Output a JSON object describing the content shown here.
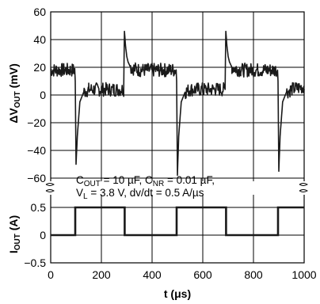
{
  "chart_data": [
    {
      "type": "line",
      "panel": "top",
      "ylabel": "ΔVOUT (mV)",
      "ylabel_parts": [
        "ΔV",
        "OUT",
        " (mV)"
      ],
      "xlim": [
        0,
        1000
      ],
      "ylim": [
        -60,
        60
      ],
      "yticks": [
        60,
        40,
        20,
        0,
        -20,
        -40,
        -60
      ],
      "grid": true,
      "series": [
        {
          "x": [
            0,
            95,
            97,
            100,
            105,
            115,
            130,
            150,
            200,
            250,
            288,
            291,
            295,
            300,
            305,
            315,
            330,
            350,
            400,
            450,
            495,
            497,
            500,
            505,
            515,
            530,
            550,
            600,
            650,
            688,
            691,
            695,
            700,
            705,
            715,
            730,
            750,
            800,
            850,
            895,
            897,
            900,
            905,
            915,
            930,
            950,
            1000
          ],
          "y": [
            18,
            18,
            10,
            -50,
            -30,
            -5,
            2,
            4,
            4,
            4,
            4,
            46,
            36,
            28,
            24,
            20,
            19,
            18,
            18,
            18,
            18,
            10,
            -58,
            -30,
            -5,
            2,
            4,
            4,
            4,
            4,
            46,
            36,
            28,
            24,
            20,
            19,
            18,
            18,
            18,
            18,
            10,
            -55,
            -30,
            -5,
            2,
            4,
            6
          ]
        }
      ]
    },
    {
      "type": "line",
      "panel": "bottom",
      "ylabel": "IOUT (A)",
      "ylabel_parts": [
        "I",
        "OUT",
        " (A)"
      ],
      "xlabel": "t (μs)",
      "xlim": [
        0,
        1000
      ],
      "ylim": [
        -0.5,
        0.5
      ],
      "yticks": [
        0.5,
        0,
        -0.5
      ],
      "xticks": [
        0,
        200,
        400,
        600,
        800,
        1000
      ],
      "grid": true,
      "series": [
        {
          "x": [
            0,
            97,
            97,
            292,
            292,
            497,
            497,
            692,
            692,
            897,
            897,
            1000
          ],
          "y": [
            0,
            0,
            0.5,
            0.5,
            0,
            0,
            0.5,
            0.5,
            0,
            0,
            0.5,
            0.5
          ]
        }
      ],
      "annotation": {
        "line1_parts": [
          "C",
          "OUT",
          " = 10 µF, C",
          "NR",
          " = 0.01 µF,"
        ],
        "line2_parts": [
          "V",
          "L",
          " = 3.8 V, dv/dt = 0.5 A/µs"
        ]
      }
    }
  ],
  "colors": {
    "trace": "#1a1a1a",
    "grid": "#000000",
    "background": "#ffffff"
  }
}
